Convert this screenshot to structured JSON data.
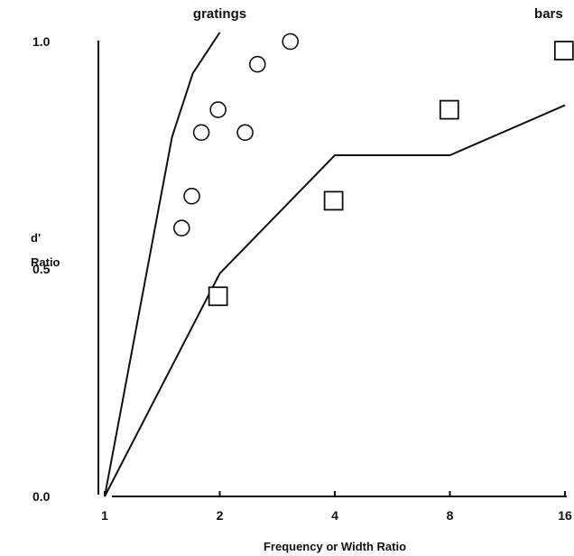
{
  "chart_data": {
    "type": "scatter",
    "title": "",
    "xlabel": "Frequency or Width Ratio",
    "ylabel": [
      "d'",
      "Ratio"
    ],
    "x_scale": "log2",
    "xlim": [
      1,
      16
    ],
    "ylim": [
      0.0,
      1.0
    ],
    "x_ticks": [
      1,
      2,
      4,
      8,
      16
    ],
    "x_tick_labels": [
      "1",
      "2",
      "4",
      "8",
      "16"
    ],
    "y_ticks": [
      0.0,
      0.5,
      1.0
    ],
    "y_tick_labels": [
      "0.0",
      "0.5",
      "1.0"
    ],
    "grid": false,
    "annotations": [
      {
        "text": "gratings",
        "x": 2.0,
        "y": 1.05
      },
      {
        "text": "bars",
        "x": 14.5,
        "y": 1.05
      }
    ],
    "series": [
      {
        "kind": "line",
        "points": [
          [
            1.0,
            0.0
          ],
          [
            1.5,
            0.79
          ],
          [
            1.7,
            0.93
          ],
          [
            2.0,
            1.02
          ]
        ]
      },
      {
        "kind": "line",
        "points": [
          [
            1.0,
            0.0
          ],
          [
            2.0,
            0.49
          ],
          [
            4.0,
            0.75
          ],
          [
            8.0,
            0.75
          ],
          [
            16.0,
            0.86
          ]
        ]
      },
      {
        "kind": "points",
        "marker": "circle",
        "points": [
          [
            1.59,
            0.59
          ],
          [
            1.69,
            0.66
          ],
          [
            1.79,
            0.8
          ],
          [
            1.98,
            0.85
          ],
          [
            2.33,
            0.8
          ],
          [
            2.51,
            0.95
          ],
          [
            3.06,
            1.0
          ]
        ]
      },
      {
        "kind": "points",
        "marker": "square",
        "points": [
          [
            1.98,
            0.44
          ],
          [
            3.97,
            0.65
          ],
          [
            7.97,
            0.85
          ],
          [
            15.9,
            0.98
          ]
        ]
      }
    ]
  }
}
